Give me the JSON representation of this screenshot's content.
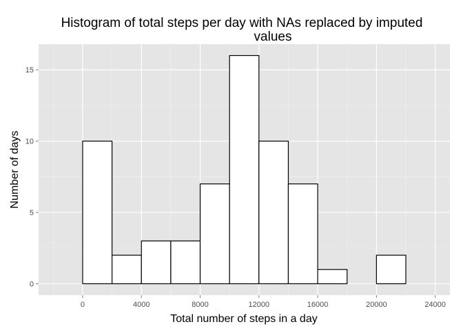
{
  "chart_data": {
    "type": "bar",
    "title_lines": [
      "Histogram of total steps per day with NAs replaced by imputed",
      "values"
    ],
    "xlabel": "Total number of steps in a day",
    "ylabel": "Number of days",
    "xlim": [
      -3000,
      25000
    ],
    "ylim": [
      -0.8,
      16.8
    ],
    "bin_width": 2000,
    "bins": [
      {
        "start": -2000,
        "end": 0,
        "count": 0
      },
      {
        "start": 0,
        "end": 2000,
        "count": 10
      },
      {
        "start": 2000,
        "end": 4000,
        "count": 2
      },
      {
        "start": 4000,
        "end": 6000,
        "count": 3
      },
      {
        "start": 6000,
        "end": 8000,
        "count": 3
      },
      {
        "start": 8000,
        "end": 10000,
        "count": 7
      },
      {
        "start": 10000,
        "end": 12000,
        "count": 16
      },
      {
        "start": 12000,
        "end": 14000,
        "count": 10
      },
      {
        "start": 14000,
        "end": 16000,
        "count": 7
      },
      {
        "start": 16000,
        "end": 18000,
        "count": 1
      },
      {
        "start": 18000,
        "end": 20000,
        "count": 0
      },
      {
        "start": 20000,
        "end": 22000,
        "count": 2
      },
      {
        "start": 22000,
        "end": 24000,
        "count": 0
      }
    ],
    "x_ticks": [
      {
        "value": 0,
        "label": "0"
      },
      {
        "value": 4000,
        "label": "4000"
      },
      {
        "value": 8000,
        "label": "8000"
      },
      {
        "value": 12000,
        "label": "12000"
      },
      {
        "value": 16000,
        "label": "16000"
      },
      {
        "value": 20000,
        "label": "20000"
      },
      {
        "value": 24000,
        "label": "24000"
      }
    ],
    "y_ticks": [
      {
        "value": 0,
        "label": "0"
      },
      {
        "value": 5,
        "label": "5"
      },
      {
        "value": 10,
        "label": "10"
      },
      {
        "value": 15,
        "label": "15"
      }
    ],
    "grid": true,
    "colors": {
      "panel_background": "#e5e5e5",
      "grid_major": "#ffffff",
      "grid_minor": "#f2f2f2",
      "bar_fill": "#ffffff",
      "bar_outline": "#000000",
      "tick_mark": "#7f7f7f"
    }
  }
}
